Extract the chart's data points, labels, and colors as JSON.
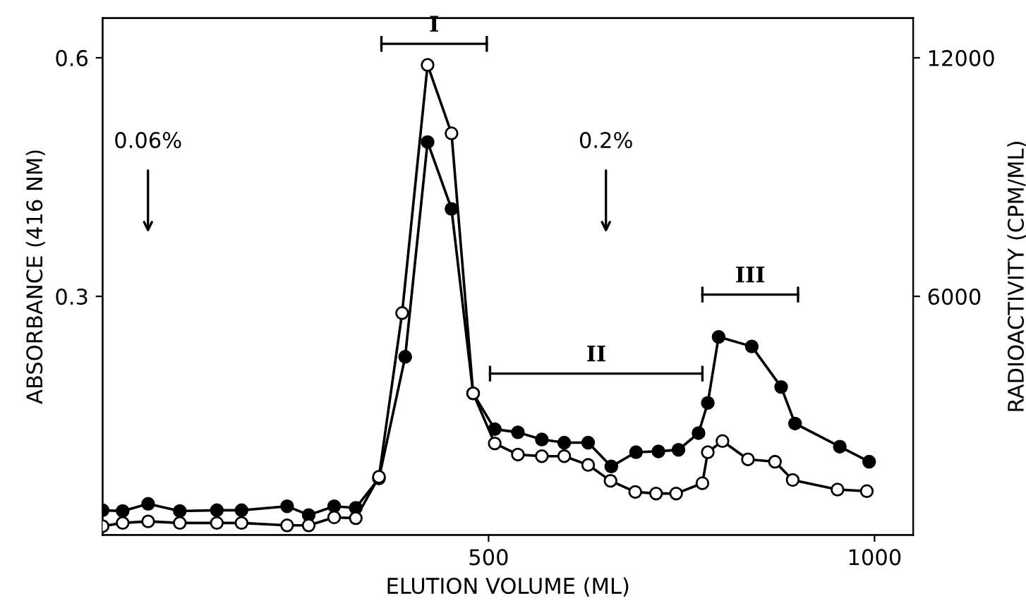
{
  "chart_data": {
    "type": "line",
    "xlabel": "ELUTION VOLUME (ML)",
    "ylabel": "ABSORBANCE (416 NM)",
    "y2label": "RADIOACTIVITY (CPM/ML)",
    "series": [
      {
        "color": "#000000",
        "marker": "circle",
        "x": [
          0,
          26,
          59,
          100,
          148,
          180,
          239,
          267,
          300,
          328,
          358,
          388,
          421,
          452,
          480,
          508,
          538,
          569,
          598,
          629,
          658,
          690,
          717,
          743,
          777,
          784,
          803,
          836,
          871,
          894,
          952,
          990
        ],
        "values": [
          0.011,
          0.015,
          0.017,
          0.015,
          0.015,
          0.015,
          0.012,
          0.012,
          0.022,
          0.021,
          0.073,
          0.279,
          0.591,
          0.505,
          0.178,
          0.115,
          0.101,
          0.099,
          0.099,
          0.088,
          0.068,
          0.054,
          0.052,
          0.052,
          0.065,
          0.104,
          0.118,
          0.095,
          0.092,
          0.069,
          0.057,
          0.055
        ]
      },
      {
        "color": "#000000",
        "marker": "circle",
        "axis": "y2",
        "x": [
          0,
          26,
          59,
          100,
          148,
          180,
          239,
          267,
          300,
          328,
          358,
          392,
          421,
          452,
          480,
          508,
          538,
          569,
          598,
          629,
          659,
          691,
          720,
          746,
          772,
          784,
          798,
          841,
          879,
          897,
          955,
          993
        ],
        "values": [
          620,
          600,
          780,
          600,
          620,
          620,
          720,
          500,
          720,
          680,
          1420,
          4480,
          9880,
          8200,
          3560,
          2660,
          2580,
          2400,
          2320,
          2320,
          1720,
          2080,
          2100,
          2140,
          2560,
          3320,
          4980,
          4740,
          3720,
          2800,
          2220,
          1840
        ]
      }
    ],
    "xlim": [
      0,
      1050
    ],
    "xticks": [
      500,
      1000
    ],
    "ylim": [
      0,
      0.65
    ],
    "yticks": [
      0.3,
      0.6
    ],
    "y2lim": [
      0,
      13000
    ],
    "y2ticks": [
      6000,
      12000
    ],
    "annotations": [
      "I",
      "II",
      "III",
      "0.06%",
      "0.2%"
    ],
    "grid": false,
    "line_style": "solid"
  }
}
